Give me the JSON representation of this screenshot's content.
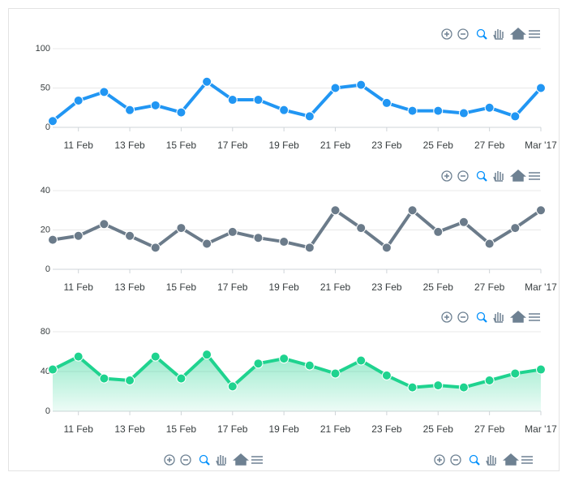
{
  "chart_data": [
    {
      "type": "line",
      "color": "#2196f3",
      "x": [
        "2017-02-10",
        "2017-02-11",
        "2017-02-12",
        "2017-02-13",
        "2017-02-14",
        "2017-02-15",
        "2017-02-16",
        "2017-02-17",
        "2017-02-18",
        "2017-02-19",
        "2017-02-20",
        "2017-02-21",
        "2017-02-22",
        "2017-02-23",
        "2017-02-24",
        "2017-02-25",
        "2017-02-26",
        "2017-02-27",
        "2017-02-28",
        "2017-03-01"
      ],
      "values": [
        8,
        34,
        45,
        22,
        28,
        19,
        58,
        35,
        35,
        22,
        14,
        50,
        54,
        31,
        21,
        21,
        18,
        25,
        14,
        50
      ],
      "xlim": [
        "2017-02-10",
        "2017-03-01"
      ],
      "xticks": [
        {
          "value": "2017-02-11",
          "label": "11 Feb"
        },
        {
          "value": "2017-02-13",
          "label": "13 Feb"
        },
        {
          "value": "2017-02-15",
          "label": "15 Feb"
        },
        {
          "value": "2017-02-17",
          "label": "17 Feb"
        },
        {
          "value": "2017-02-19",
          "label": "19 Feb"
        },
        {
          "value": "2017-02-21",
          "label": "21 Feb"
        },
        {
          "value": "2017-02-23",
          "label": "23 Feb"
        },
        {
          "value": "2017-02-25",
          "label": "25 Feb"
        },
        {
          "value": "2017-02-27",
          "label": "27 Feb"
        },
        {
          "value": "2017-03-01",
          "label": "Mar '17"
        }
      ],
      "ylim": [
        0,
        100
      ],
      "yticks": [
        0,
        50,
        100
      ],
      "grid": true
    },
    {
      "type": "line",
      "color": "#6b7b8a",
      "x": [
        "2017-02-10",
        "2017-02-11",
        "2017-02-12",
        "2017-02-13",
        "2017-02-14",
        "2017-02-15",
        "2017-02-16",
        "2017-02-17",
        "2017-02-18",
        "2017-02-19",
        "2017-02-20",
        "2017-02-21",
        "2017-02-22",
        "2017-02-23",
        "2017-02-24",
        "2017-02-25",
        "2017-02-26",
        "2017-02-27",
        "2017-02-28",
        "2017-03-01"
      ],
      "values": [
        15,
        17,
        23,
        17,
        11,
        21,
        13,
        19,
        16,
        14,
        11,
        30,
        21,
        11,
        30,
        19,
        24,
        13,
        21,
        30
      ],
      "xlim": [
        "2017-02-10",
        "2017-03-01"
      ],
      "xticks": [
        {
          "value": "2017-02-11",
          "label": "11 Feb"
        },
        {
          "value": "2017-02-13",
          "label": "13 Feb"
        },
        {
          "value": "2017-02-15",
          "label": "15 Feb"
        },
        {
          "value": "2017-02-17",
          "label": "17 Feb"
        },
        {
          "value": "2017-02-19",
          "label": "19 Feb"
        },
        {
          "value": "2017-02-21",
          "label": "21 Feb"
        },
        {
          "value": "2017-02-23",
          "label": "23 Feb"
        },
        {
          "value": "2017-02-25",
          "label": "25 Feb"
        },
        {
          "value": "2017-02-27",
          "label": "27 Feb"
        },
        {
          "value": "2017-03-01",
          "label": "Mar '17"
        }
      ],
      "ylim": [
        0,
        40
      ],
      "yticks": [
        0,
        20,
        40
      ],
      "grid": true
    },
    {
      "type": "area",
      "color": "#1fd38f",
      "x": [
        "2017-02-10",
        "2017-02-11",
        "2017-02-12",
        "2017-02-13",
        "2017-02-14",
        "2017-02-15",
        "2017-02-16",
        "2017-02-17",
        "2017-02-18",
        "2017-02-19",
        "2017-02-20",
        "2017-02-21",
        "2017-02-22",
        "2017-02-23",
        "2017-02-24",
        "2017-02-25",
        "2017-02-26",
        "2017-02-27",
        "2017-02-28",
        "2017-03-01"
      ],
      "values": [
        42,
        55,
        33,
        31,
        55,
        33,
        57,
        25,
        48,
        53,
        46,
        38,
        51,
        36,
        24,
        26,
        24,
        31,
        38,
        42
      ],
      "xlim": [
        "2017-02-10",
        "2017-03-01"
      ],
      "xticks": [
        {
          "value": "2017-02-11",
          "label": "11 Feb"
        },
        {
          "value": "2017-02-13",
          "label": "13 Feb"
        },
        {
          "value": "2017-02-15",
          "label": "15 Feb"
        },
        {
          "value": "2017-02-17",
          "label": "17 Feb"
        },
        {
          "value": "2017-02-19",
          "label": "19 Feb"
        },
        {
          "value": "2017-02-21",
          "label": "21 Feb"
        },
        {
          "value": "2017-02-23",
          "label": "23 Feb"
        },
        {
          "value": "2017-02-25",
          "label": "25 Feb"
        },
        {
          "value": "2017-02-27",
          "label": "27 Feb"
        },
        {
          "value": "2017-03-01",
          "label": "Mar '17"
        }
      ],
      "ylim": [
        0,
        80
      ],
      "yticks": [
        0,
        40,
        80
      ],
      "grid": true
    }
  ]
}
